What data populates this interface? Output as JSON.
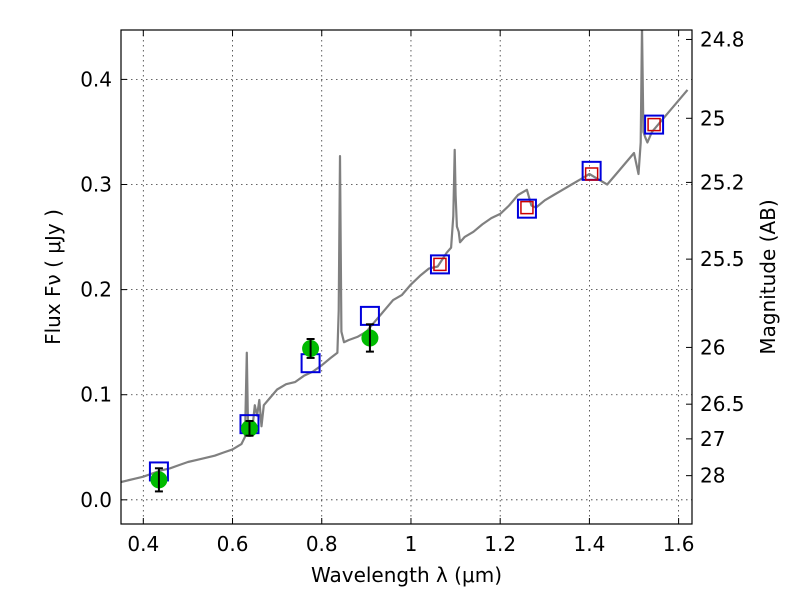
{
  "chart_data": {
    "type": "scatter",
    "title": "",
    "xlabel": "Wavelength  λ (μm)",
    "ylabel": "Flux  Fν  ( μJy )",
    "ylabel_right": "Magnitude (AB)",
    "xlim": [
      0.35,
      1.63
    ],
    "ylim": [
      -0.023,
      0.447
    ],
    "x_ticks": [
      0.4,
      0.6,
      0.8,
      1.0,
      1.2,
      1.4,
      1.6
    ],
    "x_tick_labels": [
      "0.4",
      "0.6",
      "0.8",
      "1",
      "1.2",
      "1.4",
      "1.6"
    ],
    "y_ticks": [
      0.0,
      0.1,
      0.2,
      0.3,
      0.4
    ],
    "y_tick_labels": [
      "0.0",
      "0.1",
      "0.2",
      "0.3",
      "0.4"
    ],
    "right_ticks": [
      {
        "label": "24.8",
        "flux": 0.438
      },
      {
        "label": "25",
        "flux": 0.363
      },
      {
        "label": "25.2",
        "flux": 0.302
      },
      {
        "label": "25.5",
        "flux": 0.229
      },
      {
        "label": "26",
        "flux": 0.145
      },
      {
        "label": "26.5",
        "flux": 0.091
      },
      {
        "label": "27",
        "flux": 0.058
      },
      {
        "label": "28",
        "flux": 0.023
      }
    ],
    "grid": true,
    "series": [
      {
        "kind": "line",
        "color": "#808080",
        "x": [
          0.35,
          0.38,
          0.4,
          0.42,
          0.44,
          0.46,
          0.48,
          0.5,
          0.52,
          0.54,
          0.56,
          0.58,
          0.6,
          0.62,
          0.628,
          0.632,
          0.635,
          0.638,
          0.645,
          0.65,
          0.655,
          0.66,
          0.665,
          0.67,
          0.68,
          0.7,
          0.72,
          0.74,
          0.76,
          0.78,
          0.8,
          0.82,
          0.835,
          0.838,
          0.841,
          0.844,
          0.85,
          0.86,
          0.88,
          0.9,
          0.92,
          0.94,
          0.96,
          0.98,
          1.0,
          1.02,
          1.04,
          1.06,
          1.08,
          1.09,
          1.095,
          1.098,
          1.1,
          1.103,
          1.107,
          1.11,
          1.12,
          1.14,
          1.16,
          1.18,
          1.2,
          1.22,
          1.24,
          1.26,
          1.27,
          1.28,
          1.3,
          1.32,
          1.34,
          1.36,
          1.38,
          1.4,
          1.42,
          1.44,
          1.46,
          1.48,
          1.5,
          1.51,
          1.515,
          1.518,
          1.521,
          1.525,
          1.53,
          1.54,
          1.56,
          1.58,
          1.6,
          1.62
        ],
        "y": [
          0.017,
          0.02,
          0.022,
          0.025,
          0.028,
          0.03,
          0.033,
          0.036,
          0.038,
          0.04,
          0.042,
          0.045,
          0.048,
          0.053,
          0.06,
          0.14,
          0.065,
          0.062,
          0.07,
          0.09,
          0.08,
          0.095,
          0.07,
          0.09,
          0.095,
          0.105,
          0.11,
          0.112,
          0.118,
          0.122,
          0.128,
          0.135,
          0.14,
          0.18,
          0.327,
          0.16,
          0.15,
          0.152,
          0.155,
          0.16,
          0.17,
          0.18,
          0.19,
          0.195,
          0.205,
          0.213,
          0.22,
          0.222,
          0.235,
          0.24,
          0.27,
          0.333,
          0.29,
          0.26,
          0.255,
          0.245,
          0.25,
          0.255,
          0.262,
          0.268,
          0.272,
          0.28,
          0.29,
          0.295,
          0.28,
          0.278,
          0.285,
          0.29,
          0.295,
          0.3,
          0.305,
          0.31,
          0.305,
          0.3,
          0.31,
          0.32,
          0.33,
          0.31,
          0.34,
          0.45,
          0.35,
          0.345,
          0.34,
          0.35,
          0.36,
          0.37,
          0.38,
          0.39
        ]
      },
      {
        "kind": "model_photometry",
        "color": "#0000dd",
        "marker": "open-square",
        "x": [
          0.435,
          0.638,
          0.775,
          0.908,
          1.065,
          1.26,
          1.405,
          1.545
        ],
        "y": [
          0.027,
          0.072,
          0.13,
          0.175,
          0.224,
          0.277,
          0.313,
          0.357
        ]
      },
      {
        "kind": "measured_photometry",
        "color": "#00bb00",
        "marker": "filled-circle",
        "x": [
          0.435,
          0.638,
          0.775,
          0.908
        ],
        "y": [
          0.019,
          0.068,
          0.144,
          0.154
        ],
        "yerr": [
          0.011,
          0.007,
          0.009,
          0.013
        ]
      },
      {
        "kind": "measured_photometry_nir",
        "color": "#cc0000",
        "marker": "open-square-small",
        "x": [
          1.065,
          1.26,
          1.405,
          1.545
        ],
        "y": [
          0.224,
          0.278,
          0.31,
          0.357
        ]
      }
    ]
  }
}
